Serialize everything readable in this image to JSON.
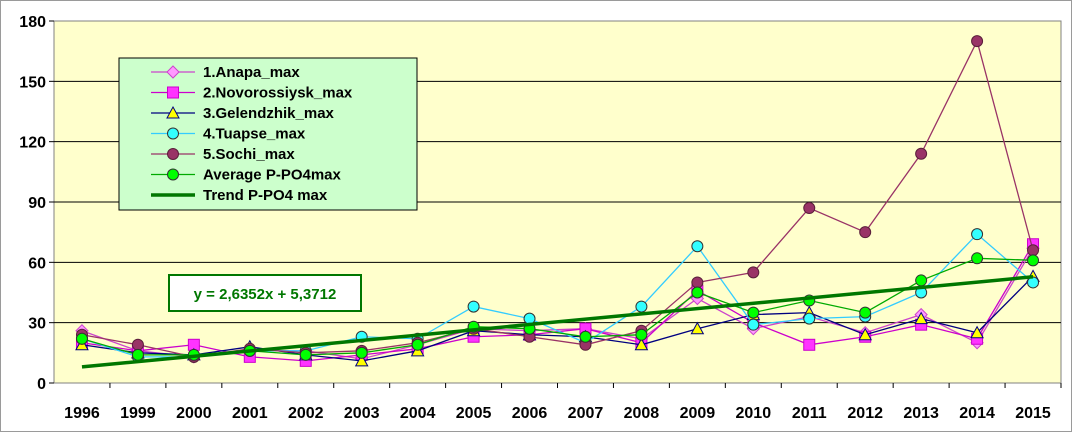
{
  "chart_data": {
    "type": "line",
    "categories": [
      "1996",
      "1999",
      "2000",
      "2001",
      "2002",
      "2003",
      "2004",
      "2005",
      "2006",
      "2007",
      "2008",
      "2009",
      "2010",
      "2011",
      "2012",
      "2013",
      "2014",
      "2015"
    ],
    "ylim": [
      0,
      180
    ],
    "yticks": [
      0,
      30,
      60,
      90,
      120,
      150,
      180
    ],
    "grid": true,
    "legend_position": "top-left",
    "plot_background": "#ffffcc",
    "series": [
      {
        "name": "1.Anapa_max",
        "color": "#cc44cc",
        "fill": "#ff99ff",
        "marker": "diamond",
        "values": [
          26,
          16,
          13,
          16,
          16,
          12,
          19,
          27,
          26,
          27,
          22,
          42,
          27,
          33,
          25,
          34,
          20,
          67
        ]
      },
      {
        "name": "2.Novorossiysk_max",
        "color": "#cc00cc",
        "fill": "#ff33ff",
        "marker": "square",
        "values": [
          20,
          16,
          19,
          13,
          11,
          14,
          17,
          23,
          24,
          27,
          20,
          46,
          30,
          19,
          23,
          29,
          22,
          69
        ]
      },
      {
        "name": "3.Gelendzhik_max",
        "color": "#000080",
        "fill": "#ffff00",
        "marker": "triangle",
        "values": [
          19,
          15,
          14,
          18,
          14,
          11,
          16,
          26,
          24,
          23,
          19,
          27,
          34,
          35,
          24,
          32,
          25,
          53
        ]
      },
      {
        "name": "4.Tuapse_max",
        "color": "#33ccff",
        "fill": "#33ffff",
        "marker": "circle",
        "values": [
          22,
          13,
          13,
          16,
          16,
          23,
          22,
          38,
          32,
          20,
          38,
          68,
          29,
          32,
          33,
          45,
          74,
          50
        ]
      },
      {
        "name": "5.Sochi_max",
        "color": "#993366",
        "fill": "#993366",
        "marker": "circle",
        "values": [
          24,
          19,
          13,
          17,
          15,
          16,
          20,
          27,
          23,
          19,
          26,
          50,
          55,
          87,
          75,
          114,
          170,
          66
        ]
      },
      {
        "name": "Average P-PO4max",
        "color": "#00aa00",
        "fill": "#00ff00",
        "marker": "circle",
        "values": [
          22,
          14,
          14,
          16,
          14,
          15,
          19,
          28,
          27,
          23,
          24,
          45,
          35,
          41,
          35,
          51,
          62,
          61
        ]
      }
    ],
    "trend": {
      "name": "Trend P-PO4 max",
      "color": "#007700",
      "slope": 2.6352,
      "intercept": 5.3712
    },
    "equation": "y = 2,6352x + 5,3712"
  }
}
